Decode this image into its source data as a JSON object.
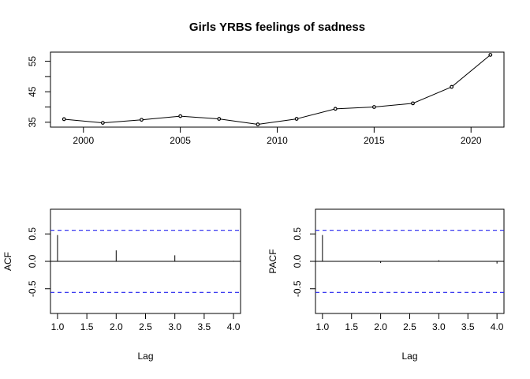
{
  "chart_data": [
    {
      "type": "line",
      "title": "Girls YRBS feelings of sadness",
      "xlabel": "",
      "ylabel": "",
      "x": [
        1999,
        2001,
        2003,
        2005,
        2007,
        2009,
        2011,
        2013,
        2015,
        2017,
        2019,
        2021
      ],
      "series": [
        {
          "values": [
            36,
            34.8,
            35.8,
            37,
            36.1,
            34.3,
            36.1,
            39.4,
            40,
            41.2,
            46.6,
            57.1
          ]
        }
      ],
      "xlim": [
        1998.3,
        2021.7
      ],
      "ylim": [
        33.4,
        58.0
      ],
      "xticks": [
        2000,
        2005,
        2010,
        2015,
        2020
      ],
      "xtick_labels": [
        "2000",
        "2005",
        "2010",
        "2015",
        "2020"
      ],
      "yticks": [
        35,
        40,
        45,
        50,
        55
      ],
      "ytick_labels": [
        "35",
        "",
        "45",
        "",
        "55"
      ],
      "grid": false,
      "color": "#000000"
    },
    {
      "type": "bar",
      "title": "",
      "xlabel": "Lag",
      "ylabel": "ACF",
      "lags": [
        1,
        2,
        3,
        4
      ],
      "values": [
        0.48,
        0.2,
        0.11,
        0.01
      ],
      "ci": 0.566,
      "xlim": [
        0.88,
        4.12
      ],
      "ylim": [
        -0.95,
        0.95
      ],
      "xticks": [
        "1.0",
        "1.5",
        "2.0",
        "2.5",
        "3.0",
        "3.5",
        "4.0"
      ],
      "yticks": [
        "-0.5",
        "0.0",
        "0.5"
      ],
      "ci_color": "#2222ee"
    },
    {
      "type": "bar",
      "title": "",
      "xlabel": "Lag",
      "ylabel": "PACF",
      "lags": [
        1,
        2,
        3,
        4
      ],
      "values": [
        0.48,
        -0.03,
        0.02,
        -0.04
      ],
      "ci": 0.566,
      "xlim": [
        0.88,
        4.12
      ],
      "ylim": [
        -0.95,
        0.95
      ],
      "xticks": [
        "1.0",
        "1.5",
        "2.0",
        "2.5",
        "3.0",
        "3.5",
        "4.0"
      ],
      "yticks": [
        "-0.5",
        "0.0",
        "0.5"
      ],
      "ci_color": "#2222ee"
    }
  ]
}
